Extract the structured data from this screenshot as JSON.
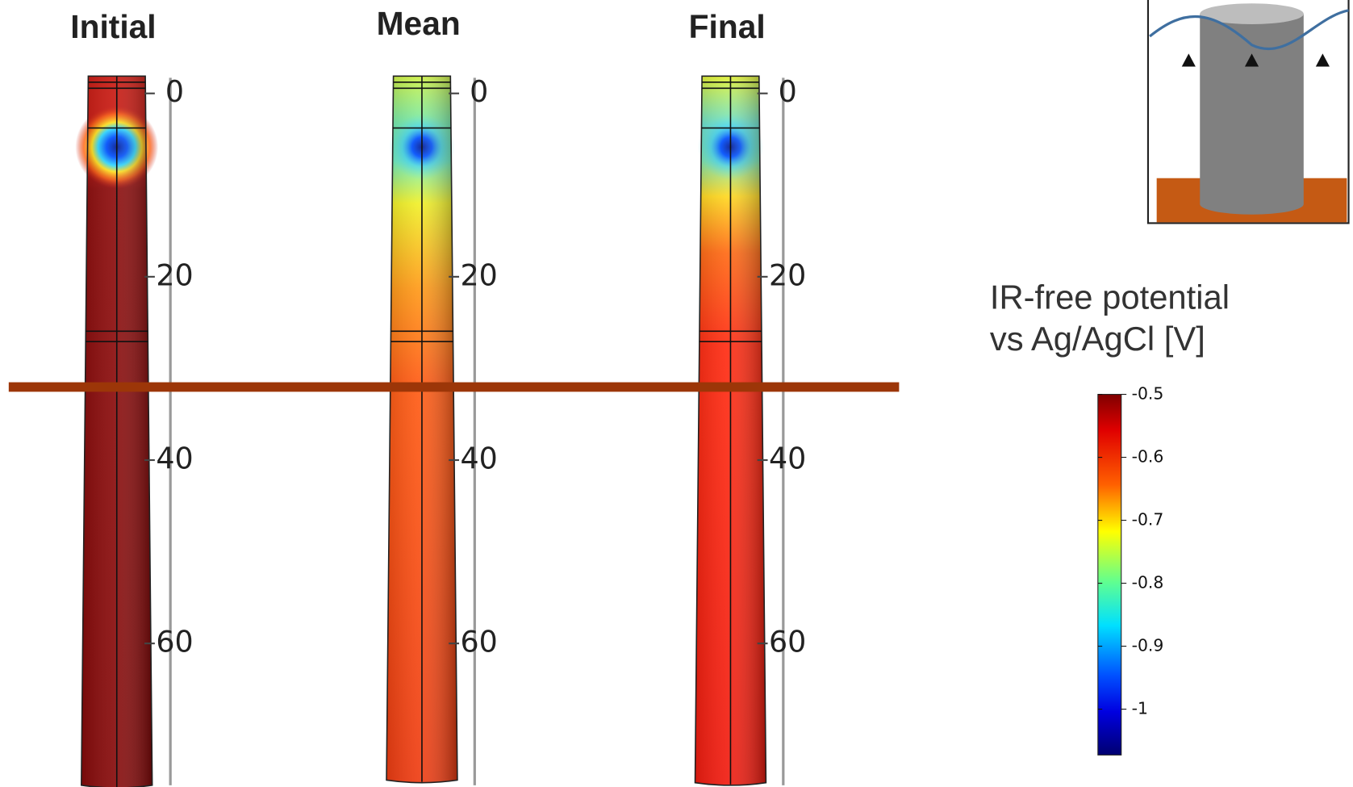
{
  "panels": [
    {
      "title": "Initial",
      "depth_ticks": [
        0,
        20,
        40,
        60
      ]
    },
    {
      "title": "Mean",
      "depth_ticks": [
        0,
        20,
        40,
        60
      ]
    },
    {
      "title": "Final",
      "depth_ticks": [
        0,
        20,
        40,
        60
      ]
    }
  ],
  "legend": {
    "title": [
      "IR-free potential",
      "vs Ag/AgCl [V]"
    ],
    "ticks": [
      -0.5,
      -0.6,
      -0.7,
      -0.8,
      -0.9,
      -1
    ]
  }
}
